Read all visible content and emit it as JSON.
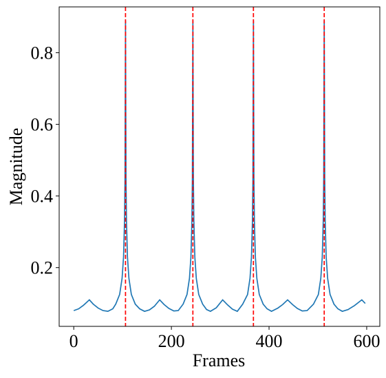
{
  "chart_data": {
    "type": "line",
    "xlabel": "Frames",
    "ylabel": "Magnitude",
    "x": [
      0,
      10,
      20,
      32,
      40,
      50,
      60,
      70,
      80,
      86,
      94,
      99,
      102,
      104,
      105,
      106,
      107,
      108,
      110,
      113,
      118,
      126,
      135,
      145,
      155,
      165,
      176,
      185,
      195,
      205,
      214,
      224,
      232,
      237,
      240,
      242,
      243,
      244,
      245,
      246,
      248,
      251,
      256,
      264,
      272,
      280,
      292,
      305,
      315,
      325,
      335,
      346,
      356,
      361,
      364,
      366,
      367,
      368,
      369,
      370,
      372,
      375,
      380,
      388,
      396,
      405,
      418,
      428,
      438,
      448,
      458,
      468,
      478,
      491,
      501,
      506,
      509,
      511,
      512,
      513,
      514,
      515,
      517,
      520,
      525,
      533,
      541,
      550,
      562,
      575,
      590,
      597
    ],
    "series": [
      {
        "color": "#1f77b4",
        "values": [
          0.08,
          0.085,
          0.095,
          0.11,
          0.098,
          0.087,
          0.08,
          0.078,
          0.085,
          0.098,
          0.125,
          0.17,
          0.23,
          0.33,
          0.45,
          0.89,
          0.45,
          0.33,
          0.23,
          0.17,
          0.125,
          0.098,
          0.085,
          0.078,
          0.082,
          0.092,
          0.11,
          0.097,
          0.086,
          0.079,
          0.08,
          0.098,
          0.125,
          0.17,
          0.23,
          0.33,
          0.45,
          0.89,
          0.45,
          0.33,
          0.23,
          0.17,
          0.125,
          0.098,
          0.083,
          0.078,
          0.088,
          0.11,
          0.096,
          0.084,
          0.078,
          0.098,
          0.125,
          0.17,
          0.23,
          0.33,
          0.45,
          0.89,
          0.45,
          0.33,
          0.23,
          0.17,
          0.125,
          0.098,
          0.085,
          0.078,
          0.087,
          0.097,
          0.11,
          0.097,
          0.086,
          0.079,
          0.08,
          0.098,
          0.125,
          0.17,
          0.23,
          0.33,
          0.45,
          0.89,
          0.45,
          0.33,
          0.23,
          0.17,
          0.125,
          0.098,
          0.085,
          0.078,
          0.083,
          0.094,
          0.11,
          0.1
        ]
      }
    ],
    "vlines": {
      "color": "#ff0000",
      "x": [
        106,
        244,
        368,
        513
      ]
    },
    "xlim": [
      -29.85,
      626.85
    ],
    "xticks": [
      0,
      200,
      400,
      600
    ],
    "ylim": [
      0.036,
      0.928
    ],
    "yticks": [
      0.2,
      0.4,
      0.6,
      0.8
    ]
  }
}
